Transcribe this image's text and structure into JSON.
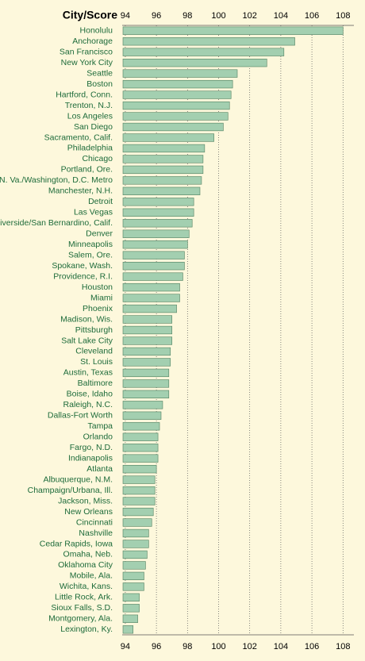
{
  "chart_data": {
    "type": "bar",
    "orientation": "horizontal",
    "title": "City/Score",
    "categories": [
      "Honolulu",
      "Anchorage",
      "San Francisco",
      "New York City",
      "Seattle",
      "Boston",
      "Hartford, Conn.",
      "Trenton, N.J.",
      "Los Angeles",
      "San Diego",
      "Sacramento, Calif.",
      "Philadelphia",
      "Chicago",
      "Portland, Ore.",
      "N. Va./Washington, D.C. Metro",
      "Manchester, N.H.",
      "Detroit",
      "Las Vegas",
      "Riverside/San Bernardino, Calif.",
      "Denver",
      "Minneapolis",
      "Salem, Ore.",
      "Spokane, Wash.",
      "Providence, R.I.",
      "Houston",
      "Miami",
      "Phoenix",
      "Madison, Wis.",
      "Pittsburgh",
      "Salt Lake City",
      "Cleveland",
      "St. Louis",
      "Austin, Texas",
      "Baltimore",
      "Boise, Idaho",
      "Raleigh, N.C.",
      "Dallas-Fort Worth",
      "Tampa",
      "Orlando",
      "Fargo, N.D.",
      "Indianapolis",
      "Atlanta",
      "Albuquerque, N.M.",
      "Champaign/Urbana, Ill.",
      "Jackson, Miss.",
      "New Orleans",
      "Cincinnati",
      "Nashville",
      "Cedar Rapids, Iowa",
      "Omaha, Neb.",
      "Oklahoma City",
      "Mobile, Ala.",
      "Wichita, Kans.",
      "Little Rock, Ark.",
      "Sioux Falls, S.D.",
      "Montgomery, Ala.",
      "Lexington, Ky."
    ],
    "values": [
      108.0,
      104.9,
      104.2,
      103.1,
      101.2,
      100.9,
      100.8,
      100.7,
      100.6,
      100.3,
      99.7,
      99.1,
      99.0,
      99.0,
      98.9,
      98.8,
      98.4,
      98.4,
      98.3,
      98.1,
      98.0,
      97.8,
      97.8,
      97.7,
      97.5,
      97.5,
      97.3,
      97.0,
      97.0,
      97.0,
      96.9,
      96.9,
      96.8,
      96.8,
      96.8,
      96.4,
      96.3,
      96.2,
      96.1,
      96.1,
      96.1,
      96.0,
      95.9,
      95.9,
      95.9,
      95.8,
      95.7,
      95.5,
      95.5,
      95.4,
      95.3,
      95.2,
      95.2,
      94.9,
      94.9,
      94.8,
      94.5
    ],
    "color": "#a3cfb0",
    "xlim": [
      93.8,
      108.7
    ],
    "xticks": [
      94,
      96,
      98,
      100,
      102,
      104,
      106,
      108
    ],
    "grid": true
  }
}
